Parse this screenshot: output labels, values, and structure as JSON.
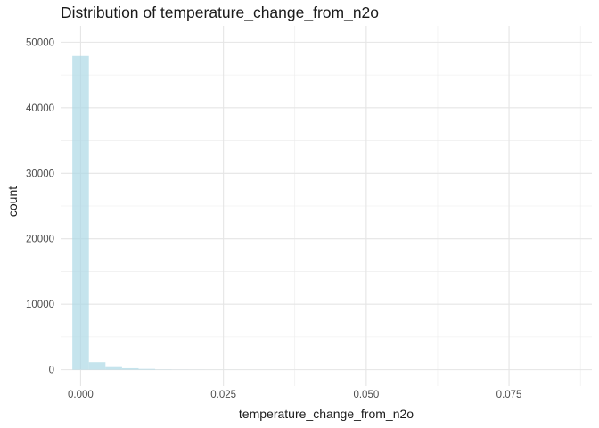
{
  "chart_data": {
    "type": "bar",
    "title": "Distribution of temperature_change_from_n2o",
    "xlabel": "temperature_change_from_n2o",
    "ylabel": "count",
    "xlim": [
      -0.0035,
      0.0895
    ],
    "ylim": [
      -2500,
      52500
    ],
    "x_ticks": [
      0.0,
      0.025,
      0.05,
      0.075
    ],
    "x_tick_labels": [
      "0.000",
      "0.025",
      "0.050",
      "0.075"
    ],
    "y_ticks": [
      0,
      10000,
      20000,
      30000,
      40000,
      50000
    ],
    "y_tick_labels": [
      "0",
      "10000",
      "20000",
      "30000",
      "40000",
      "50000"
    ],
    "bin_width": 0.0029,
    "bins": [
      {
        "x": 0.0,
        "count": 47900
      },
      {
        "x": 0.0029,
        "count": 1150
      },
      {
        "x": 0.0058,
        "count": 400
      },
      {
        "x": 0.0087,
        "count": 230
      },
      {
        "x": 0.0116,
        "count": 130
      },
      {
        "x": 0.0145,
        "count": 40
      },
      {
        "x": 0.0174,
        "count": 20
      },
      {
        "x": 0.0203,
        "count": 12
      },
      {
        "x": 0.0232,
        "count": 8
      },
      {
        "x": 0.0261,
        "count": 5
      },
      {
        "x": 0.029,
        "count": 3
      },
      {
        "x": 0.0319,
        "count": 2
      },
      {
        "x": 0.0348,
        "count": 2
      },
      {
        "x": 0.0377,
        "count": 1
      }
    ],
    "bar_color": "#add8e6",
    "bar_opacity": 0.7,
    "grid": true,
    "theme": "minimal"
  }
}
